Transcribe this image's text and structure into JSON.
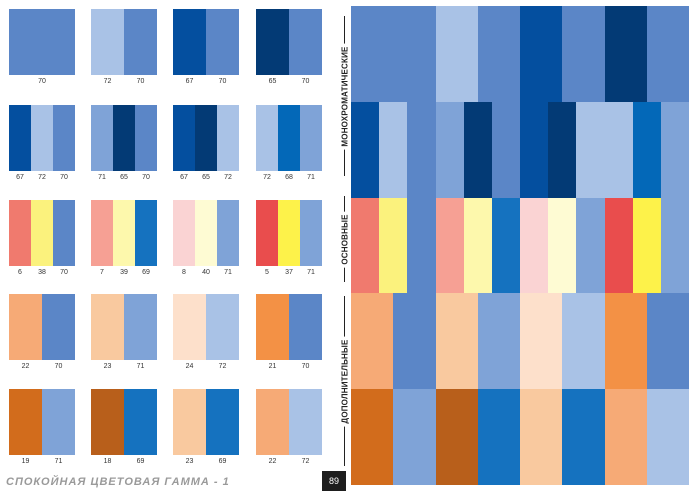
{
  "palette": {
    "5": "#e94d4d",
    "6": "#f07a6e",
    "7": "#f6a094",
    "8": "#fad3d3",
    "18": "#b85f1b",
    "19": "#d26c1c",
    "21": "#f39145",
    "22": "#f6aa76",
    "23": "#f9c99f",
    "24": "#fde0cb",
    "37": "#fdf24a",
    "38": "#fbf27d",
    "39": "#fdf8ac",
    "40": "#fefbd3",
    "65": "#033a75",
    "67": "#044f9f",
    "68": "#0368b8",
    "69": "#1572bf",
    "70": "#5b86c7",
    "71": "#7fa3d7",
    "72": "#a9c2e6"
  },
  "rows": [
    {
      "label": "МОНОХРОМАТИЧЕСКИЕ",
      "swatches": [
        {
          "colors": [
            "70"
          ]
        },
        {
          "colors": [
            "72",
            "70"
          ]
        },
        {
          "colors": [
            "67",
            "70"
          ]
        },
        {
          "colors": [
            "65",
            "70"
          ]
        }
      ]
    },
    {
      "label": "",
      "swatches": [
        {
          "colors": [
            "67",
            "72",
            "70"
          ]
        },
        {
          "colors": [
            "71",
            "65",
            "70"
          ]
        },
        {
          "colors": [
            "67",
            "65",
            "72"
          ]
        },
        {
          "colors": [
            "72",
            "68",
            "71"
          ]
        }
      ]
    },
    {
      "label": "ОСНОВНЫЕ",
      "swatches": [
        {
          "colors": [
            "6",
            "38",
            "70"
          ]
        },
        {
          "colors": [
            "7",
            "39",
            "69"
          ]
        },
        {
          "colors": [
            "8",
            "40",
            "71"
          ]
        },
        {
          "colors": [
            "5",
            "37",
            "71"
          ]
        }
      ]
    },
    {
      "label": "ДОПОЛНИТЕЛЬНЫЕ",
      "swatches": [
        {
          "colors": [
            "22",
            "70"
          ]
        },
        {
          "colors": [
            "23",
            "71"
          ]
        },
        {
          "colors": [
            "24",
            "72"
          ]
        },
        {
          "colors": [
            "21",
            "70"
          ]
        }
      ]
    },
    {
      "label": "",
      "swatches": [
        {
          "colors": [
            "19",
            "71"
          ]
        },
        {
          "colors": [
            "18",
            "69"
          ]
        },
        {
          "colors": [
            "23",
            "69"
          ]
        },
        {
          "colors": [
            "22",
            "72"
          ]
        }
      ]
    }
  ],
  "right_panel": [
    [
      "70",
      "70",
      "72",
      "70",
      "67",
      "70",
      "65",
      "70"
    ],
    [
      "67",
      "72",
      "70",
      "71",
      "65",
      "70",
      "67",
      "65",
      "72",
      "72",
      "68",
      "71"
    ],
    [
      "6",
      "38",
      "70",
      "7",
      "39",
      "69",
      "8",
      "40",
      "71",
      "5",
      "37",
      "71"
    ],
    [
      "22",
      "70",
      "23",
      "71",
      "24",
      "72",
      "21",
      "70"
    ],
    [
      "19",
      "71",
      "18",
      "69",
      "23",
      "69",
      "22",
      "72"
    ]
  ],
  "footer": {
    "title": "СПОКОЙНАЯ ЦВЕТОВАЯ ГАММА - 1",
    "page_number": "89"
  }
}
